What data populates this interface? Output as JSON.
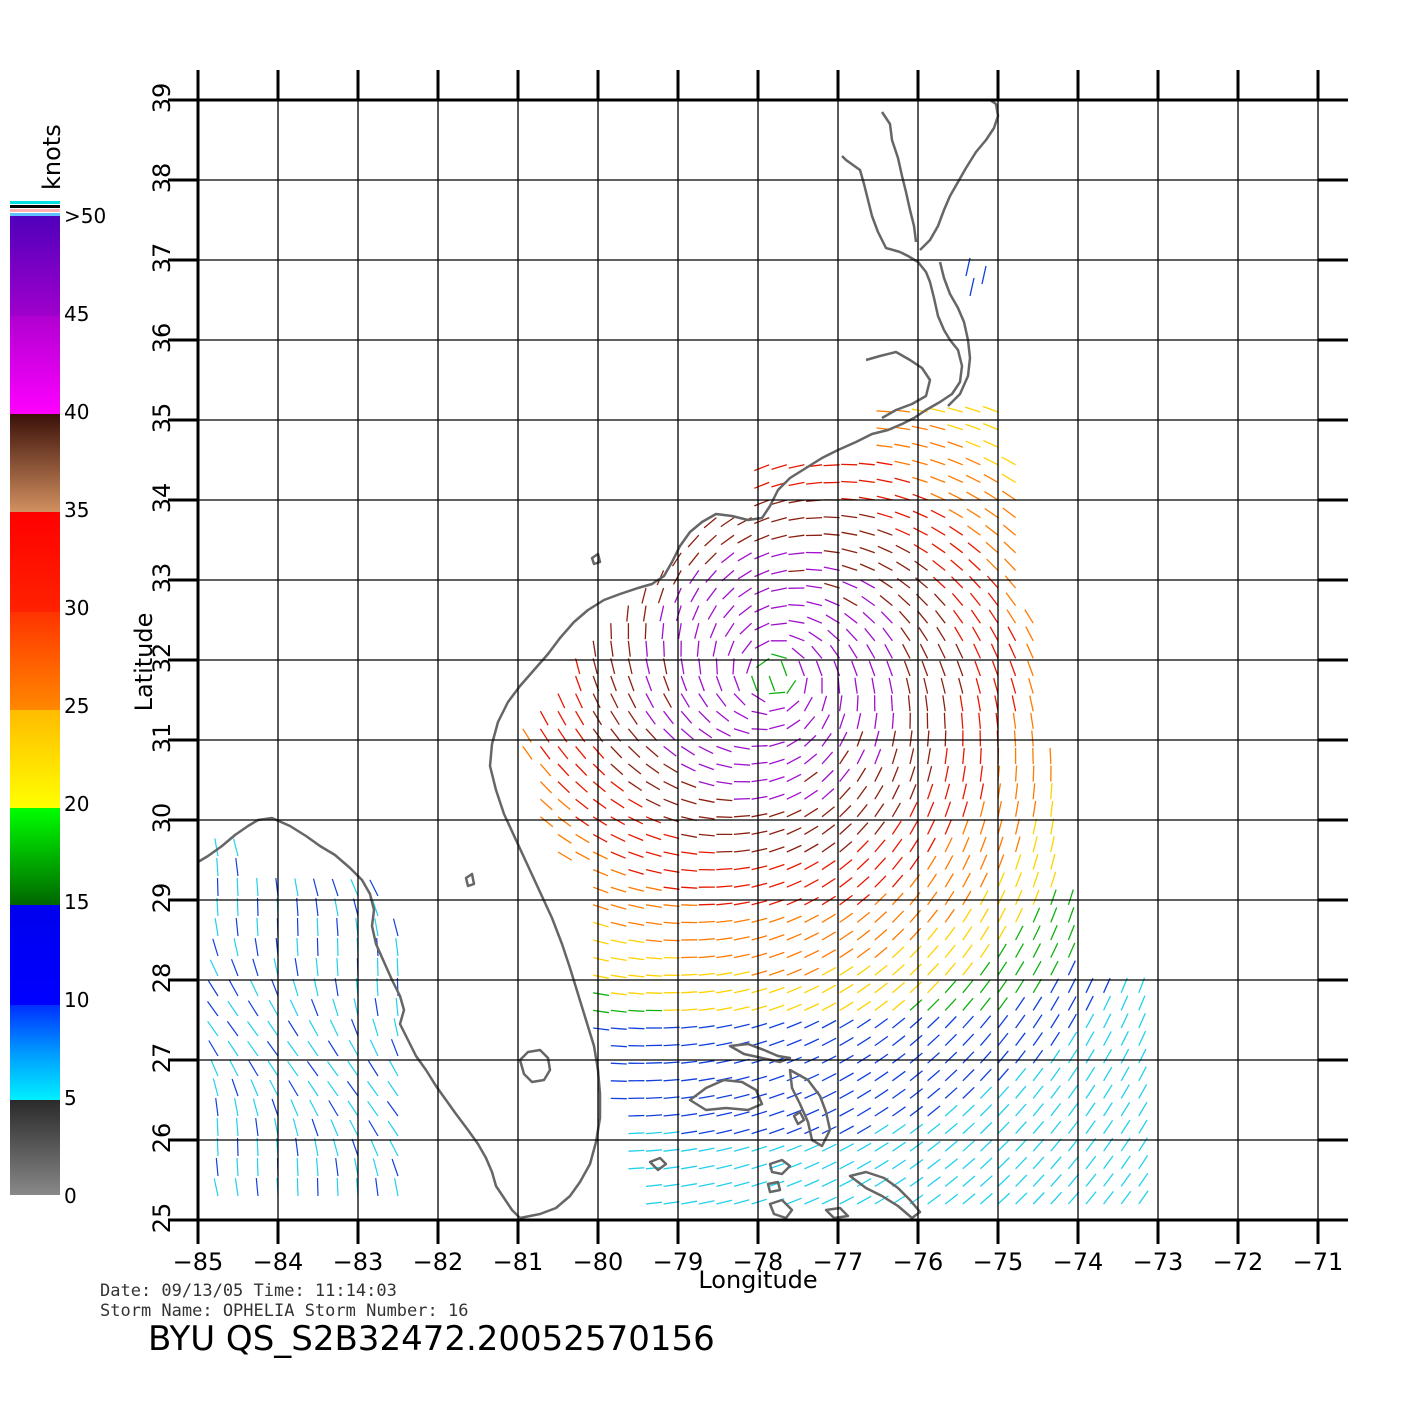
{
  "map": {
    "lon_range": [
      -85,
      -71
    ],
    "lat_range": [
      25,
      39
    ],
    "lon_ticks": [
      -85,
      -84,
      -83,
      -82,
      -81,
      -80,
      -79,
      -78,
      -77,
      -76,
      -75,
      -74,
      -73,
      -72,
      -71
    ],
    "lat_ticks": [
      25,
      26,
      27,
      28,
      29,
      30,
      31,
      32,
      33,
      34,
      35,
      36,
      37,
      38,
      39
    ],
    "lon_tick_labels": [
      "−85",
      "−84",
      "−83",
      "−82",
      "−81",
      "−80",
      "−79",
      "−78",
      "−77",
      "−76",
      "−75",
      "−74",
      "−73",
      "−72",
      "−71"
    ],
    "lat_tick_labels": [
      "25",
      "26",
      "27",
      "28",
      "29",
      "30",
      "31",
      "32",
      "33",
      "34",
      "35",
      "36",
      "37",
      "38",
      "39"
    ],
    "xlabel": "Longitude",
    "ylabel": "Latitude",
    "grid": true,
    "coastline_color": "#666666"
  },
  "storm": {
    "center_lon": -77.8,
    "center_lat": 31.8
  },
  "colorbar": {
    "title": "knots",
    "labels": [
      {
        "value": 0,
        "text": "0"
      },
      {
        "value": 5,
        "text": "5"
      },
      {
        "value": 10,
        "text": "10"
      },
      {
        "value": 15,
        "text": "15"
      },
      {
        "value": 20,
        "text": "20"
      },
      {
        "value": 25,
        "text": "25"
      },
      {
        "value": 30,
        "text": "30"
      },
      {
        "value": 35,
        "text": "35"
      },
      {
        "value": 40,
        "text": "40"
      },
      {
        "value": 45,
        "text": "45"
      },
      {
        "value": 50,
        "text": ">50"
      }
    ]
  },
  "info": {
    "line1": "Date: 09/13/05   Time: 11:14:03",
    "line2": "Storm Name: OPHELIA   Storm Number: 16",
    "title": "BYU QS_S2B32472.20052570156"
  }
}
